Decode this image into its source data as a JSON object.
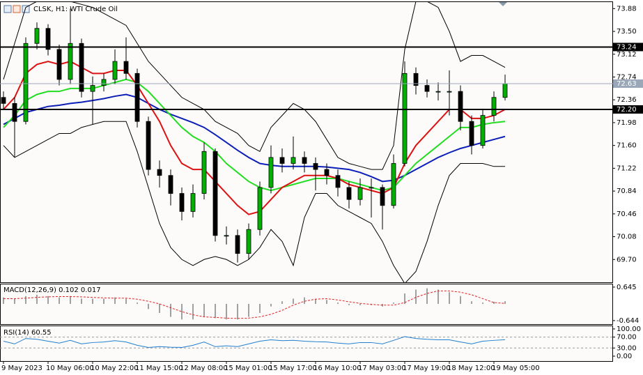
{
  "chart_data": [
    {
      "type": "candlestick",
      "title": "CLSK, H1: WTI Crude Oil",
      "categories": [
        "9 May 2023",
        null,
        null,
        null,
        "10 May 06:00",
        null,
        null,
        null,
        "10 May 22:00",
        null,
        null,
        null,
        "11 May 15:00",
        null,
        null,
        null,
        "12 May 08:00",
        null,
        null,
        null,
        "15 May 01:00",
        null,
        null,
        null,
        "15 May 17:00",
        null,
        null,
        null,
        "16 May 10:00",
        null,
        null,
        null,
        "17 May 03:00",
        null,
        null,
        null,
        "17 May 19:00",
        null,
        null,
        null,
        "18 May 12:00",
        null,
        null,
        null,
        "19 May 05:00",
        null
      ],
      "open": [
        72.4,
        72.3,
        72.0,
        73.3,
        73.55,
        73.2,
        72.7,
        73.3,
        72.5,
        72.6,
        72.7,
        73.0,
        72.8,
        72.0,
        71.2,
        71.1,
        70.8,
        70.5,
        70.8,
        71.5,
        70.1,
        70.1,
        69.8,
        70.2,
        70.9,
        71.4,
        71.3,
        71.4,
        71.3,
        71.2,
        71.1,
        70.9,
        70.7,
        70.9,
        70.9,
        70.6,
        71.3,
        72.8,
        72.6,
        72.5,
        72.5,
        72.5,
        72.0,
        71.6,
        72.1,
        72.4
      ],
      "high": [
        72.5,
        72.4,
        73.4,
        73.65,
        73.62,
        73.28,
        73.88,
        73.38,
        72.75,
        72.8,
        73.2,
        73.4,
        72.88,
        72.08,
        71.35,
        71.2,
        70.9,
        70.95,
        71.65,
        71.55,
        70.25,
        70.2,
        70.3,
        71.0,
        71.6,
        71.55,
        71.75,
        71.5,
        71.4,
        71.3,
        71.2,
        71.0,
        71.05,
        71.05,
        70.95,
        71.45,
        73.0,
        72.9,
        72.7,
        72.65,
        72.85,
        72.6,
        72.1,
        72.2,
        72.5,
        72.78
      ],
      "low": [
        72.2,
        71.4,
        71.95,
        73.2,
        73.1,
        72.6,
        72.62,
        72.4,
        71.95,
        72.5,
        72.62,
        72.7,
        71.9,
        71.1,
        70.9,
        70.6,
        70.35,
        70.4,
        70.7,
        70.0,
        69.95,
        69.65,
        69.7,
        70.1,
        70.8,
        71.15,
        71.2,
        71.15,
        70.85,
        70.95,
        70.75,
        70.55,
        70.6,
        70.4,
        70.2,
        70.55,
        71.25,
        72.45,
        72.4,
        72.35,
        72.1,
        71.85,
        71.45,
        71.55,
        72.0,
        72.35
      ],
      "close": [
        72.3,
        72.0,
        73.3,
        73.55,
        73.2,
        72.7,
        73.3,
        72.5,
        72.6,
        72.7,
        73.0,
        72.8,
        72.0,
        71.2,
        71.1,
        70.8,
        70.5,
        70.8,
        71.5,
        70.1,
        70.1,
        69.8,
        70.2,
        70.9,
        71.4,
        71.3,
        71.4,
        71.3,
        71.2,
        71.1,
        70.9,
        70.7,
        70.9,
        70.9,
        70.6,
        71.3,
        72.8,
        72.6,
        72.5,
        72.5,
        72.5,
        72.0,
        71.6,
        72.1,
        72.4,
        72.63
      ],
      "up_color": "#00b000",
      "down_color": "#000000",
      "series": [
        {
          "color": "#000000",
          "values": [
            72.7,
            73.3,
            73.9,
            74.0,
            74.0,
            74.0,
            74.0,
            73.95,
            73.9,
            73.8,
            73.7,
            73.6,
            73.3,
            73.0,
            72.8,
            72.6,
            72.4,
            72.3,
            72.2,
            72.0,
            71.9,
            71.8,
            71.6,
            71.5,
            71.9,
            72.1,
            72.3,
            72.2,
            72.0,
            71.7,
            71.4,
            71.3,
            71.25,
            71.2,
            71.2,
            71.6,
            73.2,
            74.0,
            74.0,
            73.9,
            73.5,
            73.0,
            73.1,
            73.1,
            73.0,
            72.9
          ]
        },
        {
          "color": "#000000",
          "values": [
            71.6,
            71.4,
            71.5,
            71.6,
            71.7,
            71.8,
            71.8,
            71.9,
            71.95,
            72.0,
            72.0,
            72.0,
            71.5,
            70.9,
            70.3,
            69.9,
            69.7,
            69.6,
            69.7,
            69.75,
            69.7,
            69.6,
            69.7,
            69.9,
            70.2,
            70.0,
            69.6,
            70.4,
            70.8,
            70.8,
            70.6,
            70.5,
            70.4,
            70.3,
            70.0,
            69.6,
            69.3,
            69.5,
            70.0,
            70.6,
            71.1,
            71.3,
            71.3,
            71.3,
            71.25,
            71.25
          ]
        },
        {
          "color": "#0b1fb8",
          "values": [
            71.95,
            72.05,
            72.15,
            72.2,
            72.25,
            72.27,
            72.3,
            72.32,
            72.35,
            72.38,
            72.42,
            72.45,
            72.4,
            72.3,
            72.2,
            72.12,
            72.05,
            71.98,
            71.9,
            71.78,
            71.65,
            71.52,
            71.4,
            71.3,
            71.27,
            71.25,
            71.25,
            71.25,
            71.25,
            71.24,
            71.22,
            71.2,
            71.15,
            71.08,
            71.0,
            71.02,
            71.1,
            71.2,
            71.3,
            71.4,
            71.48,
            71.55,
            71.6,
            71.65,
            71.7,
            71.75
          ]
        },
        {
          "color": "#22dd22",
          "values": [
            71.9,
            72.1,
            72.35,
            72.45,
            72.5,
            72.5,
            72.55,
            72.55,
            72.55,
            72.6,
            72.65,
            72.7,
            72.65,
            72.5,
            72.3,
            72.1,
            71.9,
            71.75,
            71.65,
            71.5,
            71.3,
            71.15,
            71.0,
            70.9,
            70.85,
            70.9,
            70.95,
            71.0,
            71.05,
            71.05,
            71.05,
            71.0,
            70.95,
            70.9,
            70.85,
            70.9,
            71.1,
            71.3,
            71.45,
            71.6,
            71.75,
            71.9,
            71.9,
            71.95,
            71.98,
            72.0
          ]
        },
        {
          "color": "#dd1111",
          "values": [
            72.2,
            72.4,
            72.8,
            72.95,
            73.0,
            72.95,
            73.0,
            72.9,
            72.8,
            72.8,
            72.85,
            72.85,
            72.6,
            72.3,
            72.0,
            71.6,
            71.3,
            71.2,
            71.2,
            71.0,
            70.8,
            70.6,
            70.45,
            70.5,
            70.7,
            70.9,
            71.0,
            71.1,
            71.1,
            71.1,
            71.05,
            70.95,
            70.9,
            70.85,
            70.8,
            70.9,
            71.3,
            71.6,
            71.8,
            72.0,
            72.2,
            72.2,
            72.05,
            72.05,
            72.1,
            72.2
          ]
        }
      ],
      "ylim": [
        69.32,
        74.0
      ],
      "yticks": [
        73.88,
        {
          "value": 73.5,
          "label": "73.50"
        },
        73.12,
        72.74,
        72.36,
        71.98,
        {
          "value": 71.6,
          "label": "71.60"
        },
        71.22,
        70.84,
        70.46,
        70.08,
        {
          "value": 69.7,
          "label": "69.70"
        }
      ],
      "levels": [
        73.24,
        {
          "value": 72.2,
          "label": "72.20"
        }
      ],
      "last_price": 72.63,
      "last_price_color": "#9aa7b8"
    },
    {
      "type": "macd",
      "title": "MACD(12,26,9) 0.102 0.017",
      "series": [
        {
          "color": "#a0a0a0",
          "values": [
            0.25,
            0.2,
            0.3,
            0.35,
            0.3,
            0.25,
            0.3,
            0.2,
            0.2,
            0.2,
            0.25,
            0.2,
            0.05,
            -0.2,
            -0.35,
            -0.5,
            -0.6,
            -0.6,
            -0.5,
            -0.55,
            -0.6,
            -0.6,
            -0.5,
            -0.35,
            -0.1,
            0.1,
            0.2,
            0.25,
            0.2,
            0.15,
            0.05,
            -0.05,
            -0.05,
            -0.05,
            -0.1,
            0.05,
            0.4,
            0.55,
            0.6,
            0.55,
            0.45,
            0.3,
            0.1,
            0.05,
            0.08,
            0.102
          ]
        },
        {
          "color": "#e02020",
          "values": [
            0.2,
            0.2,
            0.22,
            0.25,
            0.27,
            0.28,
            0.28,
            0.27,
            0.25,
            0.23,
            0.22,
            0.22,
            0.18,
            0.1,
            0.0,
            -0.15,
            -0.3,
            -0.42,
            -0.5,
            -0.52,
            -0.55,
            -0.56,
            -0.55,
            -0.5,
            -0.4,
            -0.25,
            -0.05,
            0.1,
            0.18,
            0.2,
            0.15,
            0.08,
            0.02,
            -0.02,
            -0.05,
            -0.05,
            0.05,
            0.25,
            0.4,
            0.5,
            0.5,
            0.45,
            0.35,
            0.2,
            0.05,
            0.017
          ]
        }
      ],
      "ylim": [
        -0.78,
        0.75
      ],
      "yticks": [
        0.645,
        -0.644
      ]
    },
    {
      "type": "rsi",
      "title": "RSI(14) 60.55",
      "values": [
        55,
        45,
        65,
        62,
        55,
        48,
        58,
        45,
        50,
        52,
        57,
        52,
        40,
        32,
        35,
        33,
        32,
        40,
        52,
        35,
        38,
        35,
        45,
        55,
        60,
        57,
        58,
        55,
        53,
        52,
        48,
        45,
        50,
        50,
        45,
        58,
        72,
        65,
        62,
        60,
        60,
        52,
        45,
        55,
        58,
        60.55
      ],
      "color": "#1e7fd0",
      "ylim": [
        -18,
        110
      ],
      "yticks": [
        {
          "value": 100,
          "label": "100.00"
        },
        {
          "value": 70,
          "label": "70.00"
        },
        {
          "value": 30,
          "label": "30.00"
        },
        {
          "value": 0,
          "label": "0.00"
        }
      ],
      "levels": [
        70,
        30
      ]
    }
  ]
}
